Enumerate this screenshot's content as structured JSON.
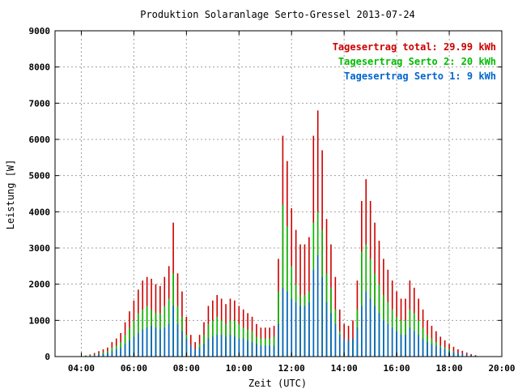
{
  "chart_data": {
    "type": "bar",
    "stacked": true,
    "title": "Produktion Solaranlage Serto-Gressel 2013-07-24",
    "xlabel": "Zeit (UTC)",
    "ylabel": "Leistung [W]",
    "xlim": [
      "03:00",
      "20:00"
    ],
    "ylim": [
      0,
      9000
    ],
    "yticks": [
      "0",
      "1000",
      "2000",
      "3000",
      "4000",
      "5000",
      "6000",
      "7000",
      "8000",
      "9000"
    ],
    "xticks": [
      "04:00",
      "06:00",
      "08:00",
      "10:00",
      "12:00",
      "14:00",
      "16:00",
      "18:00",
      "20:00"
    ],
    "grid": true,
    "legend_position": "top-right",
    "legend": [
      {
        "label": "Tagesertrag total: 29.99 kWh",
        "color": "#cc0000"
      },
      {
        "label": "Tagesertrag Serto 2: 20 kWh",
        "color": "#00bb00"
      },
      {
        "label": "Tagesertrag Serto 1: 9 kWh",
        "color": "#0066cc"
      }
    ],
    "colors": {
      "serto1": "#0066cc",
      "serto2": "#00bb00",
      "total": "#cc0000"
    },
    "x": [
      "04:00",
      "04:10",
      "04:20",
      "04:30",
      "04:40",
      "04:50",
      "05:00",
      "05:10",
      "05:20",
      "05:30",
      "05:40",
      "05:50",
      "06:00",
      "06:10",
      "06:20",
      "06:30",
      "06:40",
      "06:50",
      "07:00",
      "07:10",
      "07:20",
      "07:30",
      "07:40",
      "07:50",
      "08:00",
      "08:10",
      "08:20",
      "08:30",
      "08:40",
      "08:50",
      "09:00",
      "09:10",
      "09:20",
      "09:30",
      "09:40",
      "09:50",
      "10:00",
      "10:10",
      "10:20",
      "10:30",
      "10:40",
      "10:50",
      "11:00",
      "11:10",
      "11:20",
      "11:30",
      "11:40",
      "11:50",
      "12:00",
      "12:10",
      "12:20",
      "12:30",
      "12:40",
      "12:50",
      "13:00",
      "13:10",
      "13:20",
      "13:30",
      "13:40",
      "13:50",
      "14:00",
      "14:10",
      "14:20",
      "14:30",
      "14:40",
      "14:50",
      "15:00",
      "15:10",
      "15:20",
      "15:30",
      "15:40",
      "15:50",
      "16:00",
      "16:10",
      "16:20",
      "16:30",
      "16:40",
      "16:50",
      "17:00",
      "17:10",
      "17:20",
      "17:30",
      "17:40",
      "17:50",
      "18:00",
      "18:10",
      "18:20",
      "18:30",
      "18:40",
      "18:50",
      "19:00"
    ],
    "series": [
      {
        "name": "Serto 1",
        "values": [
          0,
          10,
          20,
          40,
          60,
          80,
          100,
          150,
          200,
          250,
          350,
          450,
          550,
          650,
          750,
          800,
          850,
          800,
          750,
          800,
          900,
          1400,
          900,
          700,
          500,
          300,
          200,
          250,
          350,
          500,
          550,
          600,
          600,
          550,
          600,
          550,
          500,
          500,
          450,
          400,
          350,
          300,
          300,
          300,
          300,
          900,
          1900,
          1800,
          1600,
          1500,
          1400,
          1400,
          1500,
          2400,
          2800,
          2200,
          1500,
          1200,
          900,
          600,
          500,
          450,
          500,
          800,
          1400,
          1800,
          1600,
          1400,
          1200,
          1000,
          900,
          800,
          700,
          600,
          600,
          800,
          700,
          600,
          500,
          400,
          350,
          300,
          250,
          200,
          150,
          120,
          100,
          80,
          60,
          40,
          20
        ]
      },
      {
        "name": "Serto 2",
        "values": [
          0,
          20,
          40,
          60,
          80,
          120,
          150,
          250,
          300,
          400,
          600,
          800,
          1000,
          1200,
          1300,
          1400,
          1300,
          1200,
          1200,
          1400,
          1600,
          2300,
          1400,
          1100,
          600,
          300,
          200,
          350,
          600,
          900,
          1000,
          1100,
          1000,
          900,
          1000,
          1000,
          900,
          800,
          750,
          700,
          550,
          500,
          500,
          500,
          550,
          1800,
          4200,
          3600,
          2500,
          2000,
          1700,
          1700,
          1800,
          3700,
          4000,
          3500,
          2300,
          1900,
          1300,
          700,
          400,
          400,
          500,
          1300,
          2900,
          3100,
          2700,
          2300,
          2000,
          1700,
          1500,
          1300,
          1100,
          1000,
          1000,
          1300,
          1200,
          1000,
          800,
          600,
          500,
          400,
          300,
          250,
          200,
          150,
          100,
          80,
          50,
          30,
          20
        ]
      },
      {
        "name": "Total",
        "values": [
          0,
          30,
          60,
          100,
          150,
          200,
          250,
          400,
          500,
          650,
          950,
          1250,
          1550,
          1850,
          2100,
          2200,
          2150,
          2000,
          1950,
          2200,
          2500,
          3700,
          2300,
          1800,
          1100,
          600,
          400,
          600,
          950,
          1400,
          1550,
          1700,
          1600,
          1450,
          1600,
          1550,
          1400,
          1300,
          1200,
          1100,
          900,
          800,
          800,
          800,
          850,
          2700,
          6100,
          5400,
          4100,
          3500,
          3100,
          3100,
          3300,
          6100,
          6800,
          5700,
          3800,
          3100,
          2200,
          1300,
          900,
          850,
          1000,
          2100,
          4300,
          4900,
          4300,
          3700,
          3200,
          2700,
          2400,
          2100,
          1800,
          1600,
          1600,
          2100,
          1900,
          1600,
          1300,
          1000,
          850,
          700,
          550,
          450,
          350,
          270,
          200,
          160,
          110,
          70,
          40
        ]
      }
    ]
  }
}
